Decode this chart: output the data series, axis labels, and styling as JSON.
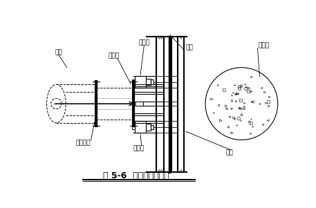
{
  "title": "图 5-6  钢管横撑安装图",
  "bg_color": "#ffffff",
  "line_color": "#000000",
  "labels": {
    "steel_pipe": "钢管",
    "joint_head": "活络头",
    "jack_top": "千斤顶",
    "joint_end": "活络端头",
    "jack_bottom": "千斤顶",
    "steel_beam": "钢梁",
    "pile": "桩注位",
    "围檩": "围檩"
  },
  "figsize": [
    4.57,
    3.01
  ],
  "dpi": 100
}
